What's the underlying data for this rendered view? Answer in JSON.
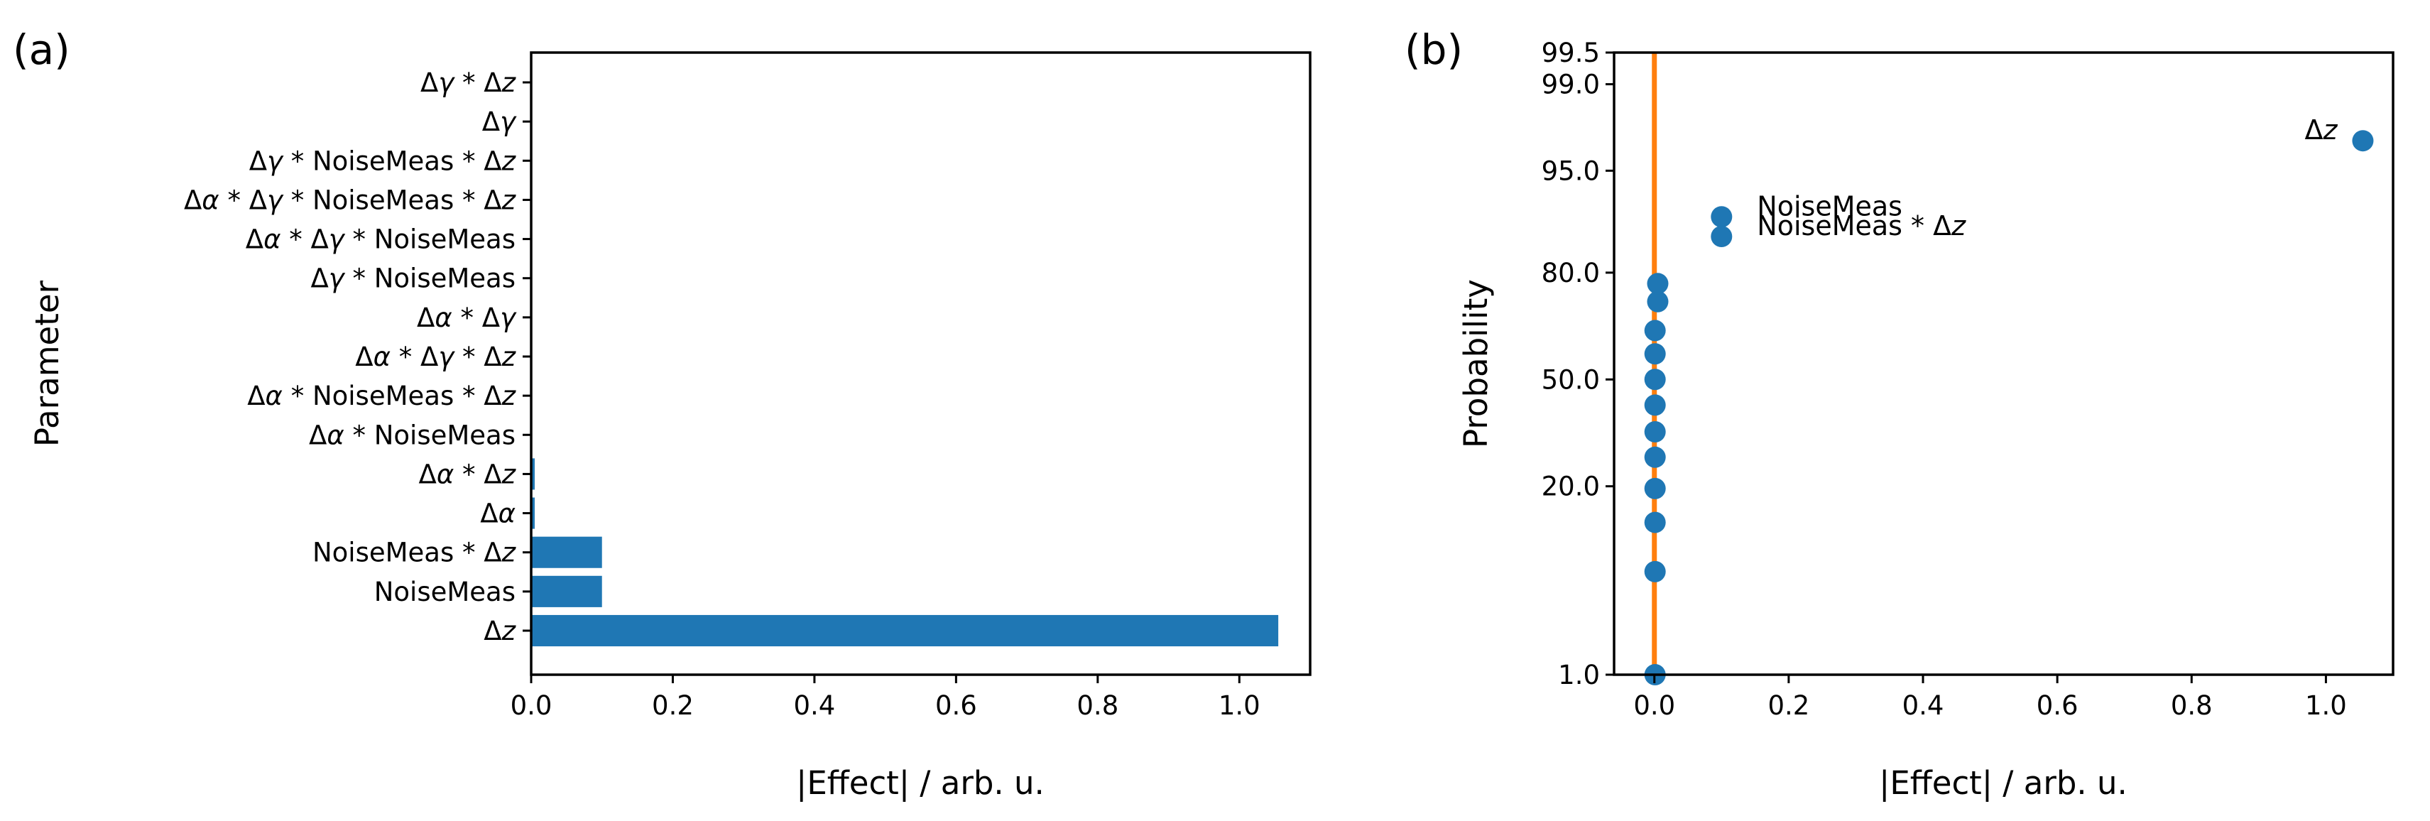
{
  "chart_data": [
    {
      "panel": "(a)",
      "type": "bar",
      "orientation": "horizontal",
      "categories": [
        "Δz",
        "NoiseMeas",
        "NoiseMeas * Δz",
        "Δα",
        "Δα * Δz",
        "Δα * NoiseMeas",
        "Δα * NoiseMeas * Δz",
        "Δα * Δγ * Δz",
        "Δα * Δγ",
        "Δγ * NoiseMeas",
        "Δα * Δγ * NoiseMeas",
        "Δα * Δγ * NoiseMeas * Δz",
        "Δγ * NoiseMeas * Δz",
        "Δγ",
        "Δγ * Δz"
      ],
      "values": [
        1.055,
        0.1,
        0.1,
        0.005,
        0.005,
        0.001,
        0.001,
        0.001,
        0.001,
        0.001,
        0.001,
        0.001,
        0.001,
        0.001,
        0.001
      ],
      "xlabel": "|Effect| / arb. u.",
      "ylabel": "Parameter",
      "xlim": [
        0,
        1.1
      ],
      "xticks": [
        "0.0",
        "0.2",
        "0.4",
        "0.6",
        "0.8",
        "1.0"
      ],
      "bar_color": "#1f77b4",
      "grid": false
    },
    {
      "panel": "(b)",
      "type": "scatter",
      "subtype": "normal probability plot",
      "points": [
        {
          "x": 0.001,
          "y": 1.0
        },
        {
          "x": 0.001,
          "y": 6.5
        },
        {
          "x": 0.001,
          "y": 13.0
        },
        {
          "x": 0.001,
          "y": 19.5
        },
        {
          "x": 0.001,
          "y": 27.0
        },
        {
          "x": 0.001,
          "y": 34.0
        },
        {
          "x": 0.001,
          "y": 42.0
        },
        {
          "x": 0.001,
          "y": 50.0
        },
        {
          "x": 0.001,
          "y": 58.0
        },
        {
          "x": 0.001,
          "y": 65.0
        },
        {
          "x": 0.005,
          "y": 73.0
        },
        {
          "x": 0.005,
          "y": 77.5
        },
        {
          "x": 0.1,
          "y": 87.0,
          "label": "NoiseMeas * Δz"
        },
        {
          "x": 0.1,
          "y": 90.0,
          "label": "NoiseMeas"
        },
        {
          "x": 1.055,
          "y": 97.0,
          "label": "Δz"
        }
      ],
      "fit_line": {
        "x": [
          0.0,
          0.0
        ],
        "y": [
          1.0,
          99.5
        ],
        "color": "#ff7f0e"
      },
      "xlabel": "|Effect| / arb. u.",
      "ylabel": "Probability",
      "xlim": [
        -0.06,
        1.1
      ],
      "xticks": [
        "0.0",
        "0.2",
        "0.4",
        "0.6",
        "0.8",
        "1.0"
      ],
      "yticks": [
        "1.0",
        "20.0",
        "50.0",
        "80.0",
        "95.0",
        "99.0",
        "99.5"
      ],
      "y_scale": "probability (normal quantile)",
      "point_color": "#1f77b4",
      "grid": false
    }
  ]
}
